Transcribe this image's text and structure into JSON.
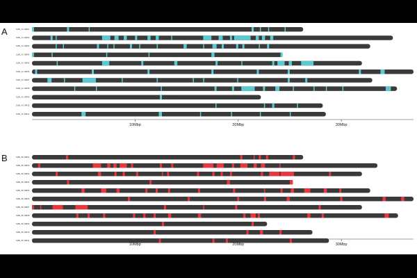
{
  "chart_data": [
    {
      "type": "chromosome_ideogram",
      "panel": "A",
      "xlabel": "",
      "x_unit": "Mbp",
      "xlim": [
        0,
        37
      ],
      "ticks": [
        {
          "value": 10,
          "label": "10Mbp"
        },
        {
          "value": 20,
          "label": "20Mbp"
        },
        {
          "value": 30,
          "label": "30Mbp"
        }
      ],
      "bar_color": "#3a3a3a",
      "highlight_color": "#5bc8d2",
      "chromosomes": [
        {
          "label": "SLB1_Ai CHR01",
          "length": 26.3,
          "regions": [
            [
              0.0,
              0.2
            ],
            [
              3.4,
              3.6
            ],
            [
              5.5,
              5.6
            ],
            [
              21.3,
              21.5
            ],
            [
              22.1,
              22.2
            ],
            [
              22.9,
              23.0
            ],
            [
              24.5,
              24.6
            ]
          ]
        },
        {
          "label": "SLB1_Ai CHR02",
          "length": 35.0,
          "regions": [
            [
              1.8,
              2.0
            ],
            [
              2.3,
              2.4
            ],
            [
              6.8,
              7.6
            ],
            [
              8.0,
              8.4
            ],
            [
              8.9,
              9.2
            ],
            [
              10.0,
              10.2
            ],
            [
              11.2,
              11.5
            ],
            [
              12.0,
              12.3
            ],
            [
              13.5,
              13.6
            ],
            [
              16.6,
              17.4
            ],
            [
              18.1,
              18.5
            ],
            [
              19.2,
              19.4
            ],
            [
              19.6,
              21.2
            ],
            [
              21.7,
              22.0
            ],
            [
              22.3,
              22.6
            ],
            [
              23.1,
              23.4
            ]
          ]
        },
        {
          "label": "SLB1_Ai CHR03",
          "length": 32.8,
          "regions": [
            [
              2.3,
              2.4
            ],
            [
              3.0,
              3.1
            ],
            [
              6.3,
              6.5
            ],
            [
              7.3,
              7.4
            ],
            [
              7.9,
              8.0
            ],
            [
              9.5,
              9.7
            ],
            [
              10.4,
              10.5
            ],
            [
              12.1,
              12.2
            ],
            [
              14.7,
              15.0
            ],
            [
              16.6,
              16.7
            ],
            [
              17.5,
              17.9
            ],
            [
              18.4,
              18.6
            ],
            [
              19.8,
              20.0
            ],
            [
              20.4,
              20.6
            ],
            [
              22.0,
              22.1
            ],
            [
              22.8,
              23.0
            ]
          ]
        },
        {
          "label": "SLB1_Ai CHR04",
          "length": 24.3,
          "regions": [
            [
              0.0,
              0.2
            ],
            [
              1.9,
              2.0
            ],
            [
              7.2,
              7.3
            ],
            [
              11.3,
              11.4
            ],
            [
              17.4,
              17.7
            ],
            [
              24.1,
              24.3
            ]
          ]
        },
        {
          "label": "SLB1_Ai CHR05",
          "length": 32.0,
          "regions": [
            [
              2.4,
              2.5
            ],
            [
              6.8,
              7.5
            ],
            [
              10.6,
              10.8
            ],
            [
              13.8,
              14.1
            ],
            [
              17.8,
              18.0
            ],
            [
              20.3,
              20.4
            ],
            [
              23.3,
              23.5
            ],
            [
              23.8,
              24.5
            ],
            [
              24.9,
              25.2
            ],
            [
              26.1,
              27.3
            ]
          ]
        },
        {
          "label": "SLB1_Ai CHR06",
          "length": 37.0,
          "regions": [
            [
              0.3,
              0.5
            ],
            [
              5.8,
              6.0
            ],
            [
              11.2,
              11.4
            ],
            [
              17.4,
              17.6
            ],
            [
              21.8,
              22.0
            ],
            [
              24.8,
              25.0
            ],
            [
              31.7,
              31.9
            ],
            [
              33.8,
              34.2
            ]
          ]
        },
        {
          "label": "SLB1_Ai CHR07",
          "length": 33.0,
          "regions": [
            [
              1.5,
              1.9
            ],
            [
              3.1,
              3.2
            ],
            [
              4.9,
              6.2
            ],
            [
              8.7,
              8.8
            ],
            [
              12.1,
              12.2
            ],
            [
              15.6,
              15.7
            ],
            [
              16.6,
              16.7
            ],
            [
              19.9,
              20.0
            ],
            [
              24.8,
              25.0
            ],
            [
              26.5,
              26.7
            ]
          ]
        },
        {
          "label": "SLB1_Ai CHR08",
          "length": 35.4,
          "regions": [
            [
              4.1,
              4.2
            ],
            [
              6.2,
              6.3
            ],
            [
              12.5,
              12.6
            ],
            [
              17.7,
              17.9
            ],
            [
              19.4,
              19.6
            ],
            [
              20.3,
              21.6
            ],
            [
              22.4,
              22.6
            ],
            [
              23.6,
              24.0
            ],
            [
              25.3,
              25.4
            ],
            [
              27.3,
              27.4
            ],
            [
              28.5,
              28.6
            ],
            [
              30.1,
              30.2
            ],
            [
              34.3,
              34.8
            ]
          ]
        },
        {
          "label": "SLB1_Ai CHR09",
          "length": 22.2,
          "regions": [
            [
              12.4,
              12.6
            ]
          ]
        },
        {
          "label": "SLB1_Ai CHR10",
          "length": 28.2,
          "regions": [
            [
              17.8,
              17.9
            ],
            [
              22.5,
              22.6
            ],
            [
              23.3,
              23.5
            ],
            [
              25.7,
              25.8
            ]
          ]
        },
        {
          "label": "SLB1_Ai CHR11",
          "length": 28.5,
          "regions": [
            [
              4.8,
              5.2
            ],
            [
              12.3,
              12.6
            ],
            [
              16.3,
              16.4
            ],
            [
              19.3,
              19.4
            ],
            [
              22.1,
              22.2
            ],
            [
              25.0,
              25.1
            ]
          ]
        }
      ]
    },
    {
      "type": "chromosome_ideogram",
      "panel": "B",
      "xlabel": "",
      "x_unit": "Mbp",
      "xlim": [
        0,
        37
      ],
      "ticks": [
        {
          "value": 10,
          "label": "10Mbp"
        },
        {
          "value": 20,
          "label": "20Mbp"
        },
        {
          "value": 30,
          "label": "30Mbp"
        }
      ],
      "bar_color": "#3a3a3a",
      "highlight_color": "#e8383d",
      "chromosomes": [
        {
          "label": "SLB1_Bi CHR01",
          "length": 26.3,
          "regions": [
            [
              3.3,
              3.5
            ],
            [
              20.2,
              20.4
            ],
            [
              21.5,
              21.6
            ],
            [
              22.0,
              22.2
            ],
            [
              22.7,
              22.9
            ],
            [
              25.3,
              25.5
            ]
          ]
        },
        {
          "label": "SLB1_Bi CHR02",
          "length": 33.5,
          "regions": [
            [
              0.6,
              0.8
            ],
            [
              5.9,
              6.7
            ],
            [
              7.3,
              7.6
            ],
            [
              7.9,
              8.2
            ],
            [
              8.5,
              9.2
            ],
            [
              9.6,
              9.8
            ],
            [
              12.4,
              12.6
            ],
            [
              13.5,
              13.7
            ],
            [
              16.6,
              17.6
            ],
            [
              17.9,
              18.6
            ],
            [
              19.4,
              19.6
            ],
            [
              20.2,
              20.9
            ],
            [
              21.5,
              21.8
            ],
            [
              22.2,
              22.6
            ],
            [
              24.0,
              24.1
            ]
          ]
        },
        {
          "label": "SLB1_Bi CHR03",
          "length": 32.0,
          "regions": [
            [
              2.3,
              2.5
            ],
            [
              6.4,
              6.7
            ],
            [
              8.0,
              8.2
            ],
            [
              8.8,
              9.0
            ],
            [
              10.1,
              10.3
            ],
            [
              12.6,
              12.7
            ],
            [
              13.1,
              13.3
            ],
            [
              16.0,
              16.2
            ],
            [
              17.5,
              17.7
            ],
            [
              18.3,
              18.5
            ],
            [
              19.2,
              19.4
            ],
            [
              22.2,
              22.4
            ],
            [
              23.0,
              24.0
            ],
            [
              24.1,
              25.4
            ],
            [
              28.8,
              29.0
            ]
          ]
        },
        {
          "label": "SLB1_Bi CHR04",
          "length": 25.3,
          "regions": [
            [
              3.4,
              3.6
            ],
            [
              11.4,
              11.6
            ],
            [
              18.9,
              19.2
            ],
            [
              25.0,
              25.3
            ]
          ]
        },
        {
          "label": "SLB1_Bi CHR05",
          "length": 32.8,
          "regions": [
            [
              4.8,
              5.1
            ],
            [
              6.7,
              7.2
            ],
            [
              8.2,
              8.5
            ],
            [
              11.0,
              11.2
            ],
            [
              12.0,
              12.2
            ],
            [
              13.2,
              13.4
            ],
            [
              16.1,
              16.3
            ],
            [
              19.5,
              19.7
            ],
            [
              22.5,
              22.6
            ],
            [
              24.1,
              24.3
            ],
            [
              25.1,
              25.4
            ],
            [
              26.4,
              27.0
            ],
            [
              28.3,
              28.6
            ],
            [
              29.8,
              30.0
            ]
          ]
        },
        {
          "label": "SLB1_Bi CHR06",
          "length": 37.0,
          "regions": [
            [
              9.3,
              9.5
            ],
            [
              15.1,
              15.3
            ],
            [
              19.9,
              20.1
            ],
            [
              22.5,
              22.7
            ],
            [
              24.7,
              25.0
            ],
            [
              29.9,
              30.1
            ],
            [
              34.0,
              34.3
            ],
            [
              35.8,
              36.1
            ]
          ]
        },
        {
          "label": "SLB1_Bi CHR07",
          "length": 32.0,
          "regions": [
            [
              0.0,
              0.2
            ],
            [
              0.8,
              0.9
            ],
            [
              2.0,
              3.0
            ],
            [
              4.2,
              5.4
            ],
            [
              12.8,
              13.0
            ],
            [
              16.6,
              16.7
            ],
            [
              19.7,
              19.9
            ],
            [
              27.8,
              28.0
            ]
          ]
        },
        {
          "label": "SLB1_Bi CHR08",
          "length": 35.5,
          "regions": [
            [
              4.3,
              4.5
            ],
            [
              5.4,
              5.6
            ],
            [
              6.9,
              7.1
            ],
            [
              9.8,
              10.0
            ],
            [
              10.8,
              11.0
            ],
            [
              11.8,
              12.0
            ],
            [
              13.2,
              13.5
            ],
            [
              16.1,
              16.4
            ],
            [
              20.5,
              20.7
            ],
            [
              21.2,
              21.7
            ],
            [
              21.9,
              22.1
            ],
            [
              26.7,
              27.0
            ],
            [
              28.1,
              28.3
            ],
            [
              34.2,
              34.6
            ]
          ]
        },
        {
          "label": "SLB1_Bi CHR09",
          "length": 22.8,
          "regions": [
            [
              12.6,
              12.8
            ],
            [
              21.3,
              21.5
            ]
          ]
        },
        {
          "label": "SLB1_Bi CHR10",
          "length": 27.2,
          "regions": [
            [
              11.8,
              12.0
            ],
            [
              20.8,
              21.0
            ],
            [
              22.1,
              22.4
            ],
            [
              24.0,
              24.2
            ]
          ]
        },
        {
          "label": "SLB1_Bi CHR11",
          "length": 28.8,
          "regions": [
            [
              12.3,
              12.5
            ],
            [
              17.5,
              17.7
            ],
            [
              18.8,
              19.0
            ],
            [
              25.0,
              25.2
            ]
          ]
        }
      ]
    }
  ]
}
